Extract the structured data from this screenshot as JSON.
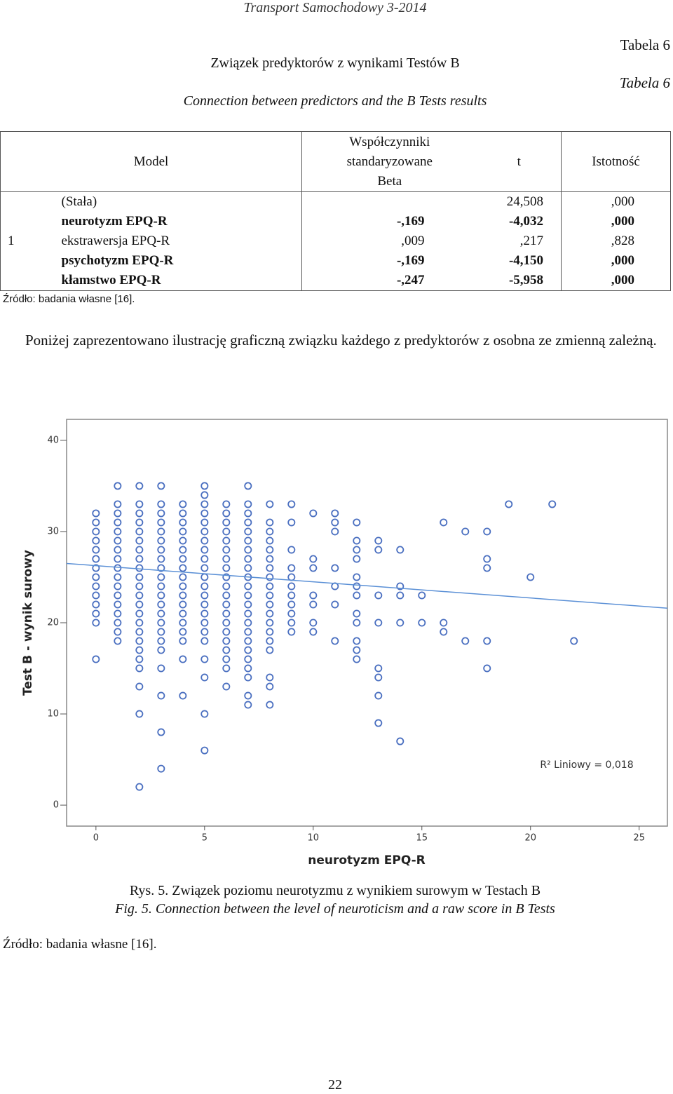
{
  "header": {
    "journal": "Transport Samochodowy 3-2014",
    "table_no": "Tabela 6",
    "table_no_en": "Tabela 6",
    "title": "Związek predyktorów z wynikami Testów B",
    "title_en": "Connection between predictors and the B Tests results"
  },
  "table": {
    "headers": [
      "Model",
      "Współczynniki standaryzowane",
      "t",
      "Istotność"
    ],
    "subheader": "Beta",
    "model": "1",
    "rows": [
      {
        "name": "(Stała)",
        "t": "24,508",
        "sig": ",000",
        "bold": false
      },
      {
        "name": "neurotyzm EPQ-R",
        "beta": "-,169",
        "t": "-4,032",
        "sig": ",000",
        "bold": true
      },
      {
        "name": "ekstrawersja EPQ-R",
        "beta": ",009",
        "t": ",217",
        "sig": ",828",
        "bold": false
      },
      {
        "name": "psychotyzm EPQ-R",
        "beta": "-,169",
        "t": "-4,150",
        "sig": ",000",
        "bold": true
      },
      {
        "name": "kłamstwo EPQ-R",
        "beta": "-,247",
        "t": "-5,958",
        "sig": ",000",
        "bold": true
      }
    ]
  },
  "source": "Źródło: badania własne [16].",
  "paragraph": "Poniżej zaprezentowano ilustrację graficzną związku każdego z predyktorów z osobna ze zmienną zależną.",
  "chart_data": {
    "type": "scatter",
    "x_label": "neurotyzm EPQ-R",
    "y_label": "Test B - wynik surowy",
    "annotation": "R² Liniowy = 0,018",
    "color": "#4a6fc0",
    "trend_color": "#5b90d6",
    "xlim": [
      -1.35,
      26.3
    ],
    "ylim": [
      -2.3,
      42.3
    ],
    "xticks": [
      0,
      5,
      10,
      15,
      20,
      25
    ],
    "yticks": [
      0,
      10,
      20,
      30,
      40
    ],
    "trend": {
      "x": [
        -1.35,
        26.3
      ],
      "y": [
        26.5,
        21.6
      ]
    },
    "x": [
      0,
      0,
      0,
      0,
      0,
      0,
      0,
      0,
      0,
      0,
      0,
      0,
      0,
      0,
      1,
      1,
      1,
      1,
      1,
      1,
      1,
      1,
      1,
      1,
      1,
      1,
      1,
      1,
      1,
      1,
      1,
      2,
      2,
      2,
      2,
      2,
      2,
      2,
      2,
      2,
      2,
      2,
      2,
      2,
      2,
      2,
      2,
      2,
      2,
      2,
      2,
      2,
      2,
      2,
      3,
      3,
      3,
      3,
      3,
      3,
      3,
      3,
      3,
      3,
      3,
      3,
      3,
      3,
      3,
      3,
      3,
      3,
      3,
      3,
      3,
      3,
      4,
      4,
      4,
      4,
      4,
      4,
      4,
      4,
      4,
      4,
      4,
      4,
      4,
      4,
      4,
      4,
      4,
      4,
      5,
      5,
      5,
      5,
      5,
      5,
      5,
      5,
      5,
      5,
      5,
      5,
      5,
      5,
      5,
      5,
      5,
      5,
      5,
      5,
      5,
      5,
      6,
      6,
      6,
      6,
      6,
      6,
      6,
      6,
      6,
      6,
      6,
      6,
      6,
      6,
      6,
      6,
      6,
      6,
      6,
      6,
      7,
      7,
      7,
      7,
      7,
      7,
      7,
      7,
      7,
      7,
      7,
      7,
      7,
      7,
      7,
      7,
      7,
      7,
      7,
      7,
      7,
      7,
      7,
      8,
      8,
      8,
      8,
      8,
      8,
      8,
      8,
      8,
      8,
      8,
      8,
      8,
      8,
      8,
      8,
      8,
      8,
      8,
      9,
      9,
      9,
      9,
      9,
      9,
      9,
      9,
      9,
      9,
      9,
      10,
      10,
      10,
      10,
      10,
      10,
      10,
      11,
      11,
      11,
      11,
      11,
      11,
      11,
      12,
      12,
      12,
      12,
      12,
      12,
      12,
      12,
      12,
      12,
      12,
      12,
      13,
      13,
      13,
      13,
      13,
      13,
      13,
      13,
      14,
      14,
      14,
      14,
      14,
      15,
      15,
      16,
      16,
      16,
      17,
      17,
      18,
      18,
      18,
      18,
      18,
      19,
      20,
      21,
      22
    ],
    "values": [
      16,
      20,
      21,
      22,
      23,
      24,
      25,
      26,
      27,
      28,
      29,
      30,
      31,
      32,
      18,
      19,
      20,
      21,
      22,
      23,
      24,
      25,
      26,
      27,
      28,
      29,
      30,
      31,
      32,
      33,
      35,
      2,
      10,
      13,
      15,
      16,
      17,
      18,
      19,
      20,
      21,
      22,
      23,
      24,
      25,
      26,
      27,
      28,
      29,
      30,
      31,
      32,
      33,
      35,
      4,
      8,
      12,
      15,
      17,
      18,
      19,
      20,
      21,
      22,
      23,
      24,
      25,
      26,
      27,
      28,
      29,
      30,
      31,
      32,
      33,
      35,
      12,
      16,
      18,
      19,
      20,
      21,
      22,
      23,
      24,
      25,
      26,
      27,
      28,
      29,
      30,
      31,
      32,
      33,
      6,
      10,
      14,
      16,
      18,
      19,
      20,
      21,
      22,
      23,
      24,
      25,
      26,
      27,
      28,
      29,
      30,
      31,
      32,
      33,
      34,
      35,
      13,
      15,
      16,
      17,
      18,
      19,
      20,
      21,
      22,
      23,
      24,
      25,
      26,
      27,
      28,
      29,
      30,
      31,
      32,
      33,
      11,
      12,
      14,
      15,
      16,
      17,
      18,
      19,
      20,
      21,
      22,
      23,
      24,
      25,
      26,
      27,
      28,
      29,
      30,
      31,
      32,
      33,
      35,
      11,
      13,
      14,
      17,
      18,
      19,
      20,
      21,
      22,
      23,
      24,
      25,
      26,
      27,
      28,
      29,
      30,
      31,
      33,
      19,
      20,
      21,
      22,
      23,
      24,
      25,
      26,
      28,
      31,
      33,
      19,
      20,
      22,
      23,
      26,
      27,
      32,
      18,
      22,
      24,
      26,
      30,
      31,
      32,
      16,
      17,
      18,
      20,
      21,
      23,
      24,
      25,
      27,
      28,
      29,
      31,
      9,
      12,
      14,
      15,
      20,
      23,
      28,
      29,
      7,
      20,
      23,
      24,
      28,
      20,
      23,
      19,
      20,
      31,
      18,
      30,
      15,
      18,
      26,
      27,
      30,
      33,
      25,
      33,
      18
    ]
  },
  "caption": "Rys. 5. Związek poziomu neurotyzmu z wynikiem surowym w Testach B",
  "caption_en": "Fig. 5. Connection between the level of neuroticism and a raw score in B Tests",
  "source2": "Źródło: badania własne [16].",
  "page_number": "22"
}
